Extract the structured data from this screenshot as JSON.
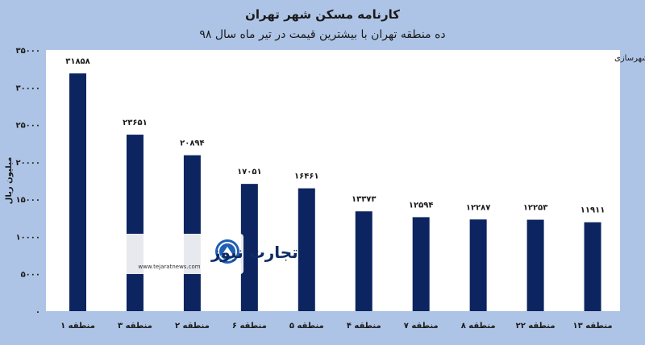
{
  "chart_data": {
    "type": "bar",
    "title": "کارنامه مسکن شهر تهران",
    "subtitle": "ده منطقه تهران با بیشترین قیمت در تیر ماه سال ۹۸",
    "source": "منبع: وزارت راه وشهرسازی",
    "ylabel": "میلیون ریال",
    "ylim": [
      0,
      35000
    ],
    "yticks": [
      0,
      5000,
      10000,
      15000,
      20000,
      25000,
      30000,
      35000
    ],
    "ytick_labels": [
      "۰",
      "۵۰۰۰",
      "۱۰۰۰۰",
      "۱۵۰۰۰",
      "۲۰۰۰۰",
      "۲۵۰۰۰",
      "۳۰۰۰۰",
      "۳۵۰۰۰"
    ],
    "categories": [
      "منطقه ۱",
      "منطقه ۳",
      "منطقه ۲",
      "منطقه ۶",
      "منطقه ۵",
      "منطقه ۴",
      "منطقه ۷",
      "منطقه ۸",
      "منطقه ۲۲",
      "منطقه ۱۳"
    ],
    "values": [
      31858,
      23651,
      20894,
      17051,
      16461,
      13373,
      12594,
      12287,
      12253,
      11911
    ],
    "value_labels": [
      "۳۱۸۵۸",
      "۲۳۶۵۱",
      "۲۰۸۹۴",
      "۱۷۰۵۱",
      "۱۶۴۶۱",
      "۱۳۳۷۳",
      "۱۲۵۹۴",
      "۱۲۲۸۷",
      "۱۲۲۵۳",
      "۱۱۹۱۱"
    ],
    "bar_color": "#0c2560",
    "grid": false,
    "legend": "none"
  },
  "logo": {
    "name": "تجارت نیوز",
    "url": "www.tejaratnews.com"
  },
  "colors": {
    "background": "#aec4e6",
    "plot_area": "#ffffff",
    "bar": "#0c2560",
    "logo_accent": "#1f5fb4"
  }
}
